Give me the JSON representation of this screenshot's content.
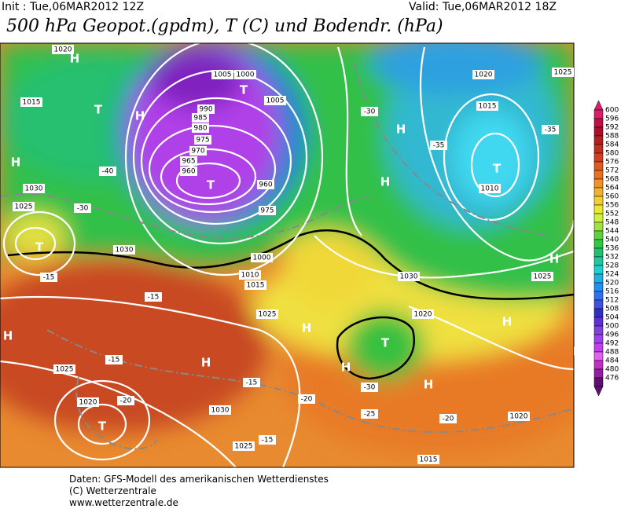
{
  "header": {
    "init": "Init : Tue,06MAR2012 12Z",
    "valid": "Valid: Tue,06MAR2012 18Z",
    "title": "500 hPa Geopot.(gpdm), T (C) und Bodendr. (hPa)"
  },
  "colorbar": {
    "labels": [
      600,
      596,
      592,
      588,
      584,
      580,
      576,
      572,
      568,
      564,
      560,
      556,
      552,
      548,
      544,
      540,
      536,
      532,
      528,
      524,
      520,
      516,
      512,
      508,
      504,
      500,
      496,
      492,
      488,
      484,
      480,
      476
    ],
    "colors": [
      "#d8206a",
      "#c01040",
      "#a8102a",
      "#b02020",
      "#c03020",
      "#d04020",
      "#e05a20",
      "#e87020",
      "#f09028",
      "#f0b030",
      "#f0d030",
      "#e8e830",
      "#d0f040",
      "#a0e040",
      "#60d040",
      "#30c840",
      "#20c070",
      "#20c8a0",
      "#20d0d0",
      "#20b0e8",
      "#2090f0",
      "#3070f0",
      "#4050e0",
      "#3030c0",
      "#6030d0",
      "#8040e0",
      "#a040f0",
      "#c040f0",
      "#e060f0",
      "#c030c0",
      "#9020a0",
      "#601070"
    ]
  },
  "map_labels": [
    "H",
    "T",
    "H",
    "H",
    "T",
    "T",
    "H",
    "H",
    "T",
    "T",
    "H",
    "H",
    "T",
    "H",
    "T",
    "H",
    "H",
    "H",
    "H",
    "H",
    "1020",
    "1015",
    "1030",
    "1025",
    "1030",
    "1025",
    "1025",
    "1030",
    "1025",
    "1020",
    "1010",
    "1015",
    "1020",
    "1025",
    "1020",
    "1030",
    "1025",
    "965",
    "960",
    "985",
    "980",
    "1005",
    "990",
    "975",
    "970",
    "1000",
    "1005",
    "960",
    "975",
    "1000",
    "1010",
    "1015",
    "-40",
    "-30",
    "-35",
    "-35",
    "-30",
    "-15",
    "-15",
    "-15",
    "-20",
    "-15",
    "-20",
    "-25",
    "-30",
    "-20",
    "-15",
    "1015",
    "1020"
  ],
  "footer": [
    "Daten: GFS-Modell des amerikanischen Wetterdienstes",
    "(C) Wetterzentrale",
    "www.wetterzentrale.de"
  ]
}
